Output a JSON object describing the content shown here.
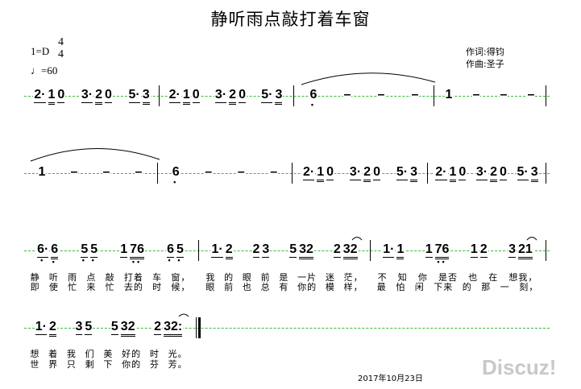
{
  "title": "静听雨点敲打着车窗",
  "key": "1=D",
  "time_signature": {
    "top": "4",
    "bottom": "4"
  },
  "tempo": {
    "note_icon": "quarter-note",
    "text": "=60"
  },
  "credits": {
    "lyrics": "作词:得钧",
    "music": "作曲:圣子"
  },
  "rows": [
    {
      "measures": [
        [
          [
            {
              "t": "2·",
              "u": 1
            },
            {
              "t": "1",
              "u": 2
            },
            {
              "t": "0",
              "u": 1
            }
          ],
          [
            {
              "t": "3·",
              "u": 1
            },
            {
              "t": "2",
              "u": 2
            },
            {
              "t": "0",
              "u": 1
            }
          ],
          [
            {
              "t": "5·",
              "u": 1
            },
            {
              "t": "3",
              "u": 2
            }
          ]
        ],
        [
          [
            {
              "t": "2·",
              "u": 1
            },
            {
              "t": "1",
              "u": 2
            },
            {
              "t": "0",
              "u": 1
            }
          ],
          [
            {
              "t": "3·",
              "u": 1
            },
            {
              "t": "2",
              "u": 2
            },
            {
              "t": "0",
              "u": 1
            }
          ],
          [
            {
              "t": "5·",
              "u": 1
            },
            {
              "t": "3",
              "u": 2
            }
          ]
        ],
        [
          [
            {
              "t": "6",
              "low": "•"
            }
          ],
          [
            {
              "t": "–"
            }
          ],
          [
            {
              "t": "–"
            }
          ],
          [
            {
              "t": "–"
            }
          ]
        ],
        [
          [
            {
              "t": "1"
            }
          ],
          [
            {
              "t": "–"
            }
          ],
          [
            {
              "t": "–"
            }
          ],
          [
            {
              "t": "–"
            }
          ]
        ]
      ]
    },
    {
      "measures": [
        [
          [
            {
              "t": "1"
            }
          ],
          [
            {
              "t": "–"
            }
          ],
          [
            {
              "t": "–"
            }
          ],
          [
            {
              "t": "–"
            }
          ]
        ],
        [
          [
            {
              "t": "6",
              "low": "•"
            }
          ],
          [
            {
              "t": "–"
            }
          ],
          [
            {
              "t": "–"
            }
          ],
          [
            {
              "t": "–"
            }
          ]
        ],
        [
          [
            {
              "t": "2·",
              "u": 1
            },
            {
              "t": "1",
              "u": 2
            },
            {
              "t": "0",
              "u": 1
            }
          ],
          [
            {
              "t": "3·",
              "u": 1
            },
            {
              "t": "2",
              "u": 2
            },
            {
              "t": "0",
              "u": 1
            }
          ],
          [
            {
              "t": "5·",
              "u": 1
            },
            {
              "t": "3",
              "u": 2
            }
          ]
        ],
        [
          [
            {
              "t": "2·",
              "u": 1
            },
            {
              "t": "1",
              "u": 2
            },
            {
              "t": "0",
              "u": 1
            }
          ],
          [
            {
              "t": "3·",
              "u": 1
            },
            {
              "t": "2",
              "u": 2
            },
            {
              "t": "0",
              "u": 1
            }
          ],
          [
            {
              "t": "5·",
              "u": 1
            },
            {
              "t": "3",
              "u": 2
            }
          ]
        ]
      ]
    },
    {
      "measures": [
        [
          [
            {
              "t": "6·",
              "u": 1,
              "low": "•"
            },
            {
              "t": "6",
              "u": 2,
              "low": "•"
            }
          ],
          [
            {
              "t": "5",
              "u": 1,
              "low": "•"
            },
            {
              "t": "5",
              "u": 1,
              "low": "•"
            }
          ],
          [
            {
              "t": "1",
              "u": 1
            },
            {
              "t": "76",
              "u": 2,
              "low": "••"
            }
          ],
          [
            {
              "t": "6",
              "u": 1,
              "low": "•"
            },
            {
              "t": "5",
              "u": 1,
              "low": "•"
            }
          ]
        ],
        [
          [
            {
              "t": "1·",
              "u": 1
            },
            {
              "t": "2",
              "u": 2
            }
          ],
          [
            {
              "t": "2",
              "u": 1
            },
            {
              "t": "3",
              "u": 1
            }
          ],
          [
            {
              "t": "5",
              "u": 1
            },
            {
              "t": "32",
              "u": 2
            }
          ],
          [
            {
              "t": "2",
              "u": 1
            },
            {
              "t": "32",
              "u": 2
            }
          ]
        ],
        [
          [
            {
              "t": "1·",
              "u": 1
            },
            {
              "t": "1",
              "u": 2
            }
          ],
          [
            {
              "t": "1",
              "u": 1
            },
            {
              "t": "76",
              "u": 2,
              "low": "••"
            }
          ],
          [
            {
              "t": "1",
              "u": 1
            },
            {
              "t": "2",
              "u": 1
            }
          ],
          [
            {
              "t": "3",
              "u": 1
            },
            {
              "t": "21",
              "u": 2
            }
          ]
        ]
      ],
      "lyrics": [
        [
          [
            "静",
            "听",
            "雨",
            "点",
            "敲",
            "打着",
            "车",
            "窗，"
          ],
          [
            "我",
            "的",
            "眼",
            "前",
            "是",
            "一片",
            "迷",
            "茫，"
          ],
          [
            "不",
            "知",
            "你",
            "是否",
            "也",
            "在",
            "想我，"
          ]
        ],
        [
          [
            "即",
            "使",
            "忙",
            "来",
            "忙",
            "去的",
            "时",
            "候，"
          ],
          [
            "眼",
            "前",
            "也",
            "总",
            "有",
            "你的",
            "模",
            "样，"
          ],
          [
            "最",
            "怕",
            "闲",
            "下来",
            "的",
            "那",
            "一",
            "刻，"
          ]
        ]
      ]
    },
    {
      "measures": [
        [
          [
            {
              "t": "1·",
              "u": 1
            },
            {
              "t": "2",
              "u": 2
            }
          ],
          [
            {
              "t": "3",
              "u": 1
            },
            {
              "t": "5",
              "u": 1
            }
          ],
          [
            {
              "t": "5",
              "u": 1
            },
            {
              "t": "32",
              "u": 2
            }
          ],
          [
            {
              "t": "2",
              "u": 1
            },
            {
              "t": "32:",
              "u": 2
            }
          ]
        ]
      ],
      "lyrics": [
        [
          [
            "想",
            "着",
            "我",
            "们",
            "美",
            "好的",
            "时",
            "光。"
          ]
        ],
        [
          [
            "世",
            "界",
            "只",
            "剩",
            "下",
            "你的",
            "芬",
            "芳。"
          ]
        ]
      ]
    }
  ],
  "date": "2017年10月23日",
  "watermark": "Discuz!",
  "colors": {
    "staff_line": "#3cb93c",
    "watermark": "#c8c8c8"
  }
}
